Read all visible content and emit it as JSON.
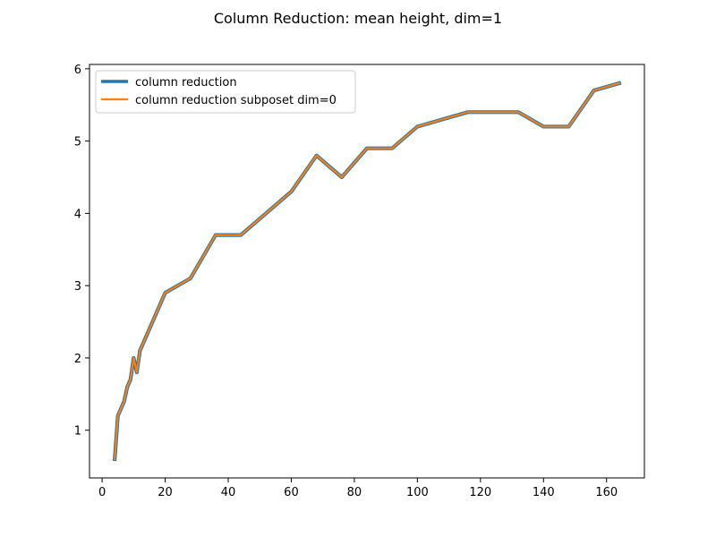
{
  "chart_data": {
    "type": "line",
    "title": "Column Reduction: mean height, dim=1",
    "xlabel": "",
    "ylabel": "",
    "xlim": [
      -4,
      172
    ],
    "ylim": [
      0.34,
      6.06
    ],
    "xticks": [
      0,
      20,
      40,
      60,
      80,
      100,
      120,
      140,
      160
    ],
    "yticks": [
      1,
      2,
      3,
      4,
      5,
      6
    ],
    "grid": false,
    "legend_position": "upper-left",
    "x": [
      4,
      5,
      7,
      8,
      9,
      10,
      11,
      12,
      20,
      28,
      36,
      44,
      60,
      68,
      76,
      84,
      92,
      100,
      116,
      132,
      140,
      148,
      156,
      164
    ],
    "series": [
      {
        "name": "column reduction",
        "color": "#1f77b4",
        "values": [
          0.6,
          1.2,
          1.4,
          1.6,
          1.7,
          2.0,
          1.8,
          2.1,
          2.9,
          3.1,
          3.7,
          3.7,
          4.3,
          4.8,
          4.5,
          4.9,
          4.9,
          5.2,
          5.4,
          5.4,
          5.2,
          5.2,
          5.7,
          5.8
        ]
      },
      {
        "name": "column reduction subposet dim=0",
        "color": "#ff7f0e",
        "values": [
          0.6,
          1.2,
          1.4,
          1.6,
          1.7,
          2.0,
          1.8,
          2.1,
          2.9,
          3.1,
          3.7,
          3.7,
          4.3,
          4.8,
          4.5,
          4.9,
          4.9,
          5.2,
          5.4,
          5.4,
          5.2,
          5.2,
          5.7,
          5.8
        ]
      }
    ]
  }
}
